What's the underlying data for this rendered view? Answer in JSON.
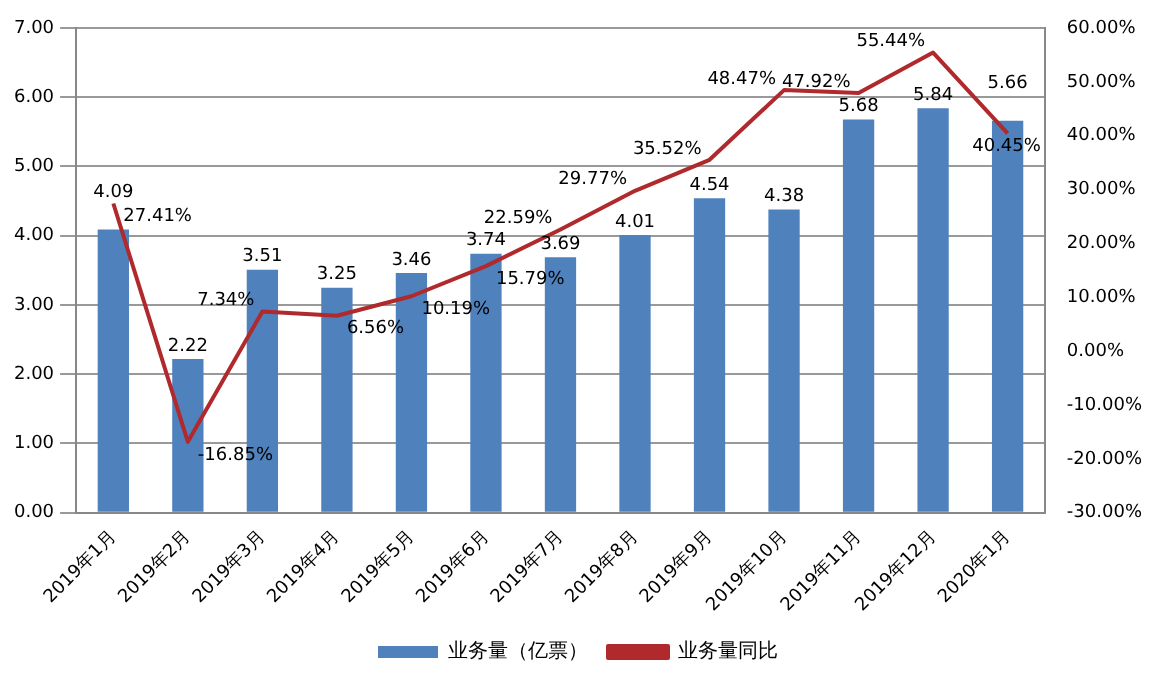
{
  "chart_data": {
    "type": "bar",
    "categories": [
      "2019年1月",
      "2019年2月",
      "2019年3月",
      "2019年4月",
      "2019年5月",
      "2019年6月",
      "2019年7月",
      "2019年8月",
      "2019年9月",
      "2019年10月",
      "2019年11月",
      "2019年12月",
      "2020年1月"
    ],
    "series": [
      {
        "name": "业务量（亿票）",
        "type": "bar",
        "color": "#4f81bd",
        "values": [
          4.09,
          2.22,
          3.51,
          3.25,
          3.46,
          3.74,
          3.69,
          4.01,
          4.54,
          4.38,
          5.68,
          5.84,
          5.66
        ],
        "value_labels": [
          "4.09",
          "2.22",
          "3.51",
          "3.25",
          "3.46",
          "3.74",
          "3.69",
          "4.01",
          "4.54",
          "4.38",
          "5.68",
          "5.84",
          "5.66"
        ]
      },
      {
        "name": "业务量同比",
        "type": "line",
        "axis": "y2",
        "color": "#b0292c",
        "values": [
          27.41,
          -16.85,
          7.34,
          6.56,
          10.19,
          15.79,
          22.59,
          29.77,
          35.52,
          48.47,
          47.92,
          55.44,
          40.45
        ],
        "value_labels": [
          "27.41%",
          "-16.85%",
          "7.34%",
          "6.56%",
          "10.19%",
          "15.79%",
          "22.59%",
          "29.77%",
          "35.52%",
          "48.47%",
          "47.92%",
          "55.44%",
          "40.45%"
        ]
      }
    ],
    "ylim": [
      0,
      7
    ],
    "yticks": [
      {
        "value": 0,
        "label": "0.00"
      },
      {
        "value": 1,
        "label": "1.00"
      },
      {
        "value": 2,
        "label": "2.00"
      },
      {
        "value": 3,
        "label": "3.00"
      },
      {
        "value": 4,
        "label": "4.00"
      },
      {
        "value": 5,
        "label": "5.00"
      },
      {
        "value": 6,
        "label": "6.00"
      },
      {
        "value": 7,
        "label": "7.00"
      }
    ],
    "y2lim": [
      -30,
      60
    ],
    "y2ticks": [
      {
        "value": -30,
        "label": "-30.00%"
      },
      {
        "value": -20,
        "label": "-20.00%"
      },
      {
        "value": -10,
        "label": "-10.00%"
      },
      {
        "value": 0,
        "label": "0.00%"
      },
      {
        "value": 10,
        "label": "10.00%"
      },
      {
        "value": 20,
        "label": "20.00%"
      },
      {
        "value": 30,
        "label": "30.00%"
      },
      {
        "value": 40,
        "label": "40.00%"
      },
      {
        "value": 50,
        "label": "50.00%"
      },
      {
        "value": 60,
        "label": "60.00%"
      }
    ],
    "grid": "y",
    "legend": "bottom",
    "marker": "none",
    "line_style": "solid"
  }
}
